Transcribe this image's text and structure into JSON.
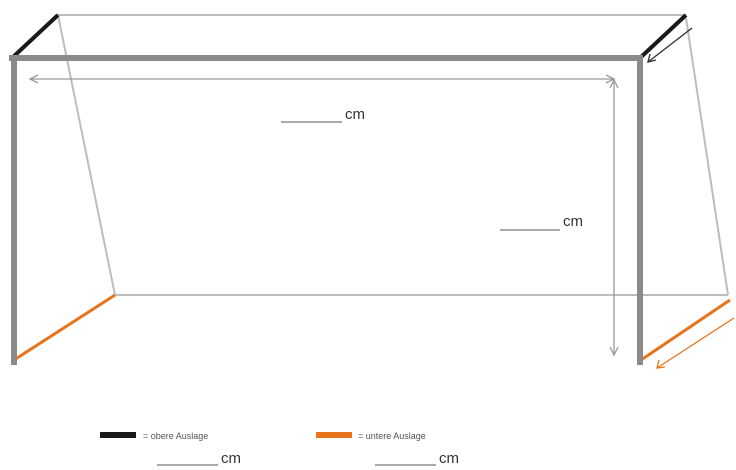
{
  "width_label": "cm",
  "height_label": "cm",
  "legend": {
    "upper": {
      "text": "= obere Auslage",
      "unit": "cm",
      "color": "#1a1a1a"
    },
    "lower": {
      "text": "= untere Auslage",
      "unit": "cm",
      "color": "#e8731a"
    }
  },
  "colors": {
    "post": "#8a8a8a",
    "net_line": "#bdbdbd",
    "dimension": "#9a9a9a"
  }
}
